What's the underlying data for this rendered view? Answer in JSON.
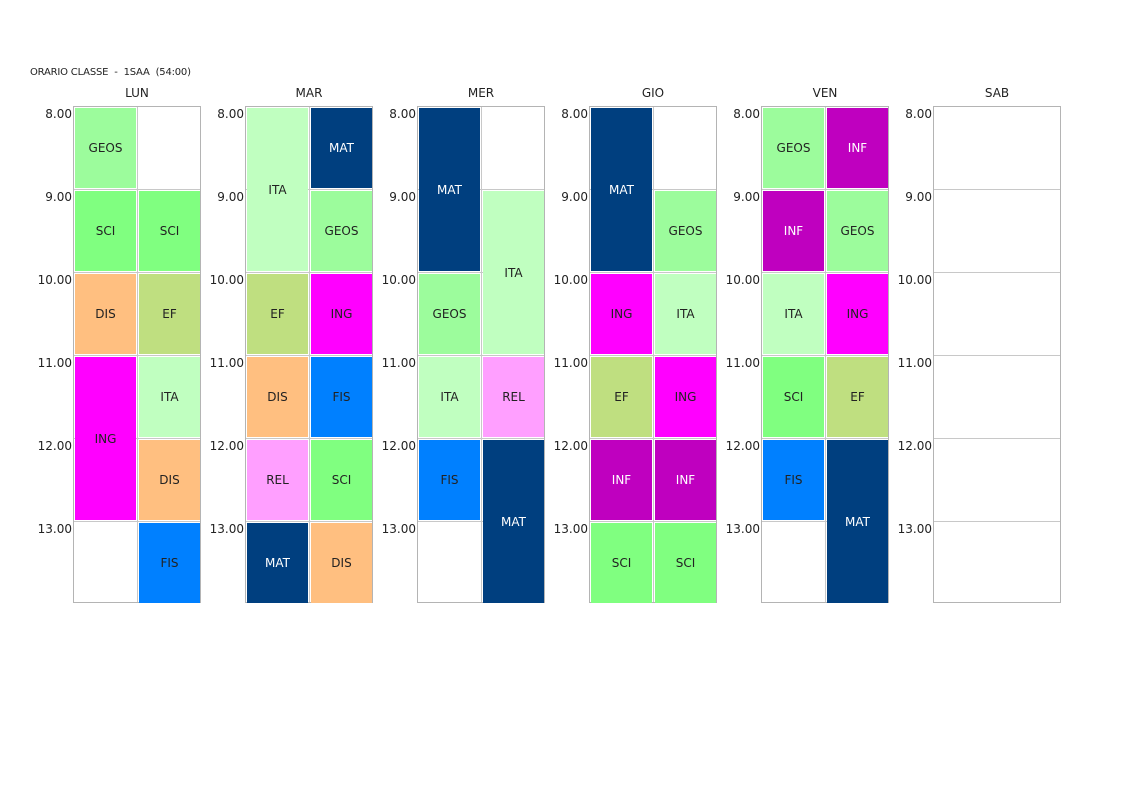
{
  "title": "ORARIO CLASSE  -  1SAA  (54:00)",
  "hours": [
    "8.00",
    "9.00",
    "10.00",
    "11.00",
    "12.00",
    "13.00"
  ],
  "colors": {
    "MAT": "#003f7f",
    "GEOS": "#9cfc9c",
    "SCI": "#80ff80",
    "DIS": "#ffbf80",
    "EF": "#bfdf80",
    "ING": "#ff00ff",
    "ITA": "#c0ffc0",
    "FIS": "#0080ff",
    "REL": "#ff9fff",
    "INF": "#bf00bf"
  },
  "text_colors": {
    "MAT": "#ffffff",
    "GEOS": "#222222",
    "SCI": "#222222",
    "DIS": "#222222",
    "EF": "#222222",
    "ING": "#222222",
    "ITA": "#222222",
    "FIS": "#222222",
    "REL": "#222222",
    "INF": "#ffffff"
  },
  "days": [
    {
      "name": "LUN",
      "lessons": [
        {
          "subject": "GEOS",
          "col": 0,
          "start": 0,
          "span": 1
        },
        {
          "subject": "SCI",
          "col": 0,
          "start": 1,
          "span": 1
        },
        {
          "subject": "SCI",
          "col": 1,
          "start": 1,
          "span": 1
        },
        {
          "subject": "DIS",
          "col": 0,
          "start": 2,
          "span": 1
        },
        {
          "subject": "EF",
          "col": 1,
          "start": 2,
          "span": 1
        },
        {
          "subject": "ING",
          "col": 0,
          "start": 3,
          "span": 2
        },
        {
          "subject": "ITA",
          "col": 1,
          "start": 3,
          "span": 1
        },
        {
          "subject": "DIS",
          "col": 1,
          "start": 4,
          "span": 1
        },
        {
          "subject": "FIS",
          "col": 1,
          "start": 5,
          "span": 1
        }
      ]
    },
    {
      "name": "MAR",
      "lessons": [
        {
          "subject": "ITA",
          "col": 0,
          "start": 0,
          "span": 2
        },
        {
          "subject": "MAT",
          "col": 1,
          "start": 0,
          "span": 1
        },
        {
          "subject": "GEOS",
          "col": 1,
          "start": 1,
          "span": 1
        },
        {
          "subject": "EF",
          "col": 0,
          "start": 2,
          "span": 1
        },
        {
          "subject": "ING",
          "col": 1,
          "start": 2,
          "span": 1
        },
        {
          "subject": "DIS",
          "col": 0,
          "start": 3,
          "span": 1
        },
        {
          "subject": "FIS",
          "col": 1,
          "start": 3,
          "span": 1
        },
        {
          "subject": "REL",
          "col": 0,
          "start": 4,
          "span": 1
        },
        {
          "subject": "SCI",
          "col": 1,
          "start": 4,
          "span": 1
        },
        {
          "subject": "MAT",
          "col": 0,
          "start": 5,
          "span": 1
        },
        {
          "subject": "DIS",
          "col": 1,
          "start": 5,
          "span": 1
        }
      ]
    },
    {
      "name": "MER",
      "lessons": [
        {
          "subject": "MAT",
          "col": 0,
          "start": 0,
          "span": 2
        },
        {
          "subject": "ITA",
          "col": 1,
          "start": 1,
          "span": 2
        },
        {
          "subject": "GEOS",
          "col": 0,
          "start": 2,
          "span": 1
        },
        {
          "subject": "ITA",
          "col": 0,
          "start": 3,
          "span": 1
        },
        {
          "subject": "REL",
          "col": 1,
          "start": 3,
          "span": 1
        },
        {
          "subject": "FIS",
          "col": 0,
          "start": 4,
          "span": 1
        },
        {
          "subject": "MAT",
          "col": 1,
          "start": 4,
          "span": 2
        }
      ]
    },
    {
      "name": "GIO",
      "lessons": [
        {
          "subject": "MAT",
          "col": 0,
          "start": 0,
          "span": 2
        },
        {
          "subject": "GEOS",
          "col": 1,
          "start": 1,
          "span": 1
        },
        {
          "subject": "ING",
          "col": 0,
          "start": 2,
          "span": 1
        },
        {
          "subject": "ITA",
          "col": 1,
          "start": 2,
          "span": 1
        },
        {
          "subject": "EF",
          "col": 0,
          "start": 3,
          "span": 1
        },
        {
          "subject": "ING",
          "col": 1,
          "start": 3,
          "span": 1
        },
        {
          "subject": "INF",
          "col": 0,
          "start": 4,
          "span": 1
        },
        {
          "subject": "INF",
          "col": 1,
          "start": 4,
          "span": 1
        },
        {
          "subject": "SCI",
          "col": 0,
          "start": 5,
          "span": 1
        },
        {
          "subject": "SCI",
          "col": 1,
          "start": 5,
          "span": 1
        }
      ]
    },
    {
      "name": "VEN",
      "lessons": [
        {
          "subject": "GEOS",
          "col": 0,
          "start": 0,
          "span": 1
        },
        {
          "subject": "INF",
          "col": 1,
          "start": 0,
          "span": 1
        },
        {
          "subject": "INF",
          "col": 0,
          "start": 1,
          "span": 1
        },
        {
          "subject": "GEOS",
          "col": 1,
          "start": 1,
          "span": 1
        },
        {
          "subject": "ITA",
          "col": 0,
          "start": 2,
          "span": 1
        },
        {
          "subject": "ING",
          "col": 1,
          "start": 2,
          "span": 1
        },
        {
          "subject": "SCI",
          "col": 0,
          "start": 3,
          "span": 1
        },
        {
          "subject": "EF",
          "col": 1,
          "start": 3,
          "span": 1
        },
        {
          "subject": "FIS",
          "col": 0,
          "start": 4,
          "span": 1
        },
        {
          "subject": "MAT",
          "col": 1,
          "start": 4,
          "span": 2
        }
      ]
    },
    {
      "name": "SAB",
      "lessons": []
    }
  ]
}
